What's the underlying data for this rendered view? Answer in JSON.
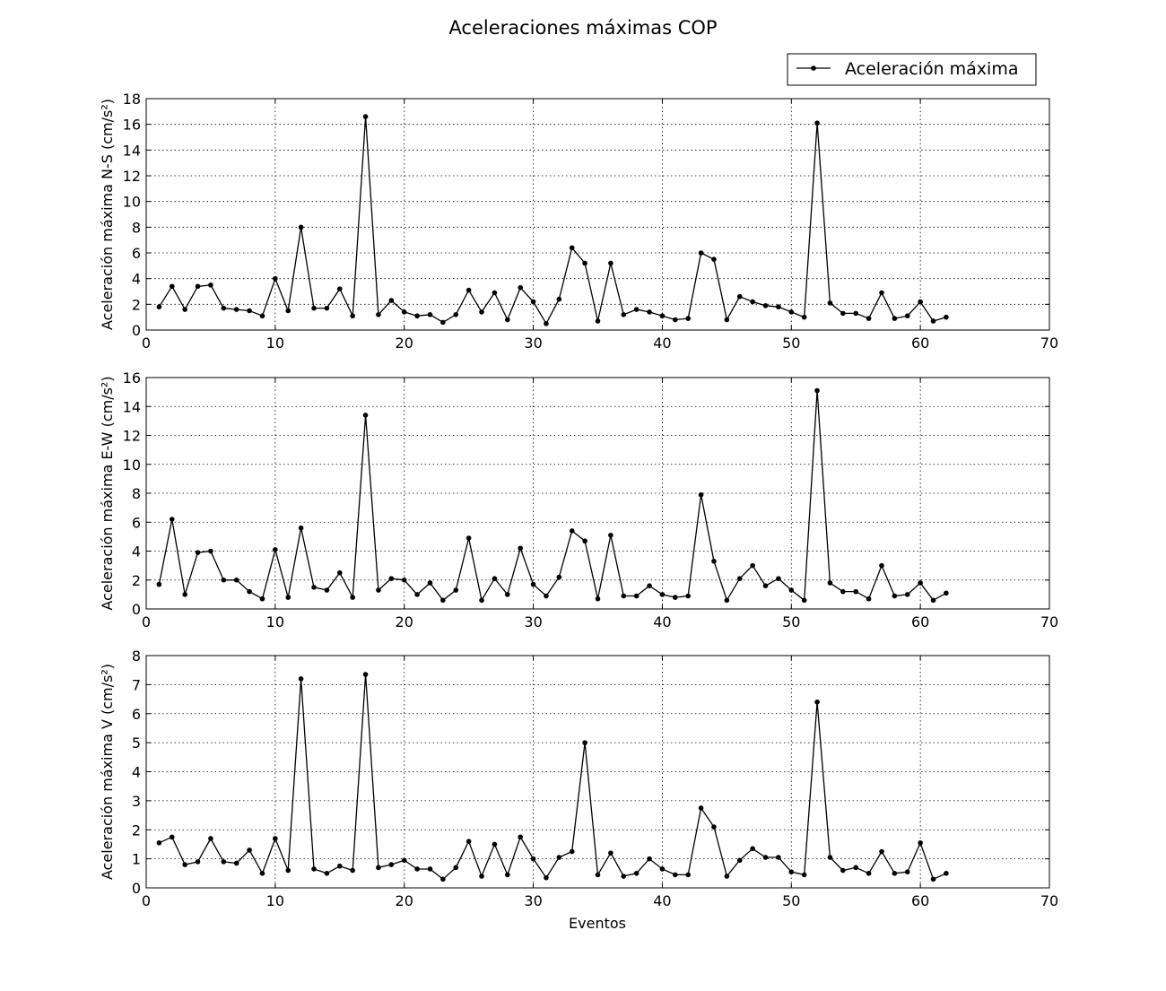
{
  "title": "Aceleraciones máximas COP",
  "legend": {
    "label": "Aceleración máxima",
    "position": "top-right",
    "marker": "dot-line"
  },
  "xlabel": "Eventos",
  "colors": {
    "line": "#000000",
    "grid": "#000000",
    "background": "#ffffff"
  },
  "chart_data": [
    {
      "type": "line",
      "ylabel": "Aceleración máxima N-S (cm/s²)",
      "xlim": [
        0,
        70
      ],
      "ylim": [
        0,
        18
      ],
      "xticks": [
        0,
        10,
        20,
        30,
        40,
        50,
        60,
        70
      ],
      "yticks": [
        0,
        2,
        4,
        6,
        8,
        10,
        12,
        14,
        16,
        18
      ],
      "grid": true,
      "series": [
        {
          "name": "Aceleración máxima",
          "x": [
            1,
            2,
            3,
            4,
            5,
            6,
            7,
            8,
            9,
            10,
            11,
            12,
            13,
            14,
            15,
            16,
            17,
            18,
            19,
            20,
            21,
            22,
            23,
            24,
            25,
            26,
            27,
            28,
            29,
            30,
            31,
            32,
            33,
            34,
            35,
            36,
            37,
            38,
            39,
            40,
            41,
            42,
            43,
            44,
            45,
            46,
            47,
            48,
            49,
            50,
            51,
            52,
            53,
            54,
            55,
            56,
            57,
            58,
            59,
            60,
            61,
            62
          ],
          "values": [
            1.8,
            3.4,
            1.6,
            3.4,
            3.5,
            1.7,
            1.6,
            1.5,
            1.1,
            4.0,
            1.5,
            8.0,
            1.7,
            1.7,
            3.2,
            1.1,
            16.6,
            1.2,
            2.3,
            1.4,
            1.1,
            1.2,
            0.6,
            1.2,
            3.1,
            1.4,
            2.9,
            0.8,
            3.3,
            2.2,
            0.5,
            2.4,
            6.4,
            5.2,
            0.7,
            5.2,
            1.2,
            1.6,
            1.4,
            1.1,
            0.8,
            0.9,
            6.0,
            5.5,
            0.8,
            2.6,
            2.2,
            1.9,
            1.8,
            1.4,
            1.0,
            16.1,
            2.1,
            1.3,
            1.3,
            0.9,
            2.9,
            0.9,
            1.1,
            2.2,
            0.7,
            1.0
          ]
        }
      ]
    },
    {
      "type": "line",
      "ylabel": "Aceleración máxima E-W (cm/s²)",
      "xlim": [
        0,
        70
      ],
      "ylim": [
        0,
        16
      ],
      "xticks": [
        0,
        10,
        20,
        30,
        40,
        50,
        60,
        70
      ],
      "yticks": [
        0,
        2,
        4,
        6,
        8,
        10,
        12,
        14,
        16
      ],
      "grid": true,
      "series": [
        {
          "name": "Aceleración máxima",
          "x": [
            1,
            2,
            3,
            4,
            5,
            6,
            7,
            8,
            9,
            10,
            11,
            12,
            13,
            14,
            15,
            16,
            17,
            18,
            19,
            20,
            21,
            22,
            23,
            24,
            25,
            26,
            27,
            28,
            29,
            30,
            31,
            32,
            33,
            34,
            35,
            36,
            37,
            38,
            39,
            40,
            41,
            42,
            43,
            44,
            45,
            46,
            47,
            48,
            49,
            50,
            51,
            52,
            53,
            54,
            55,
            56,
            57,
            58,
            59,
            60,
            61,
            62
          ],
          "values": [
            1.7,
            6.2,
            1.0,
            3.9,
            4.0,
            2.0,
            2.0,
            1.2,
            0.7,
            4.1,
            0.8,
            5.6,
            1.5,
            1.3,
            2.5,
            0.8,
            13.4,
            1.3,
            2.1,
            2.0,
            1.0,
            1.8,
            0.6,
            1.3,
            4.9,
            0.6,
            2.1,
            1.0,
            4.2,
            1.7,
            0.9,
            2.2,
            5.4,
            4.7,
            0.7,
            5.1,
            0.9,
            0.9,
            1.6,
            1.0,
            0.8,
            0.9,
            7.9,
            3.3,
            0.6,
            2.1,
            3.0,
            1.6,
            2.1,
            1.3,
            0.6,
            15.1,
            1.8,
            1.2,
            1.2,
            0.7,
            3.0,
            0.9,
            1.0,
            1.8,
            0.6,
            1.1
          ]
        }
      ]
    },
    {
      "type": "line",
      "ylabel": "Aceleración máxima V (cm/s²)",
      "xlabel": "Eventos",
      "xlim": [
        0,
        70
      ],
      "ylim": [
        0,
        8
      ],
      "xticks": [
        0,
        10,
        20,
        30,
        40,
        50,
        60,
        70
      ],
      "yticks": [
        0,
        1,
        2,
        3,
        4,
        5,
        6,
        7,
        8
      ],
      "grid": true,
      "series": [
        {
          "name": "Aceleración máxima",
          "x": [
            1,
            2,
            3,
            4,
            5,
            6,
            7,
            8,
            9,
            10,
            11,
            12,
            13,
            14,
            15,
            16,
            17,
            18,
            19,
            20,
            21,
            22,
            23,
            24,
            25,
            26,
            27,
            28,
            29,
            30,
            31,
            32,
            33,
            34,
            35,
            36,
            37,
            38,
            39,
            40,
            41,
            42,
            43,
            44,
            45,
            46,
            47,
            48,
            49,
            50,
            51,
            52,
            53,
            54,
            55,
            56,
            57,
            58,
            59,
            60,
            61,
            62
          ],
          "values": [
            1.55,
            1.75,
            0.8,
            0.9,
            1.7,
            0.9,
            0.85,
            1.3,
            0.5,
            1.7,
            0.6,
            7.2,
            0.65,
            0.5,
            0.75,
            0.6,
            7.35,
            0.7,
            0.8,
            0.95,
            0.65,
            0.65,
            0.3,
            0.7,
            1.6,
            0.4,
            1.5,
            0.45,
            1.75,
            1.0,
            0.35,
            1.05,
            1.25,
            5.0,
            0.45,
            1.2,
            0.4,
            0.5,
            1.0,
            0.65,
            0.45,
            0.45,
            2.75,
            2.1,
            0.4,
            0.95,
            1.35,
            1.05,
            1.05,
            0.55,
            0.45,
            6.4,
            1.05,
            0.6,
            0.7,
            0.5,
            1.25,
            0.5,
            0.55,
            1.55,
            0.3,
            0.5
          ]
        }
      ]
    }
  ]
}
